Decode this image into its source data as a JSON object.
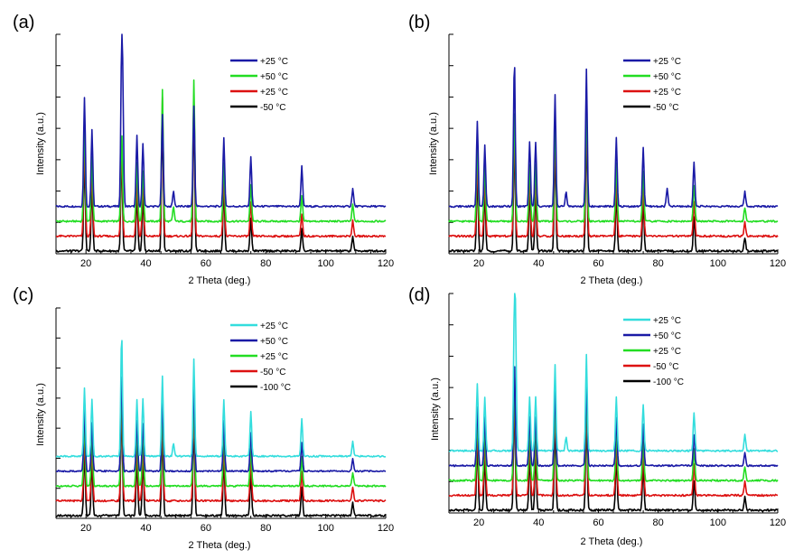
{
  "chart_data": [
    {
      "panel": "(a)",
      "type": "line",
      "xlabel": "2 Theta (deg.)",
      "ylabel": "Intensity (a.u.)",
      "xlim": [
        10,
        120
      ],
      "xticks": [
        20,
        40,
        60,
        80,
        100,
        120
      ],
      "legend": [
        {
          "label": "+25 °C",
          "color": "#1a1aa6"
        },
        {
          "label": "+50 °C",
          "color": "#22dd22"
        },
        {
          "label": "+25 °C",
          "color": "#dd1111"
        },
        {
          "label": "-50 °C",
          "color": "#000000"
        }
      ],
      "series": [
        {
          "name": "+25 °C",
          "color": "#1a1aa6",
          "baseline": 0.18,
          "peaks": [
            [
              19.5,
              0.74
            ],
            [
              22,
              0.52
            ],
            [
              31.9,
              1.0
            ],
            [
              32.3,
              0.56
            ],
            [
              37,
              0.48
            ],
            [
              39,
              0.42
            ],
            [
              45.5,
              0.62
            ],
            [
              49.2,
              0.1
            ],
            [
              56,
              0.68
            ],
            [
              66,
              0.46
            ],
            [
              75,
              0.34
            ],
            [
              92,
              0.27
            ],
            [
              109,
              0.12
            ]
          ]
        },
        {
          "name": "+50 °C",
          "color": "#22dd22",
          "baseline": 0.24,
          "peaks": [
            [
              19.5,
              0.7
            ],
            [
              22,
              0.46
            ],
            [
              31.9,
              0.65
            ],
            [
              37,
              0.42
            ],
            [
              39,
              0.36
            ],
            [
              45.5,
              0.94
            ],
            [
              49.2,
              0.1
            ],
            [
              56,
              1.0
            ],
            [
              66,
              0.42
            ],
            [
              75,
              0.26
            ],
            [
              92,
              0.18
            ],
            [
              109,
              0.12
            ]
          ]
        },
        {
          "name": "+25 °C",
          "color": "#dd1111",
          "baseline": 0.3,
          "peaks": [
            [
              19.5,
              0.62
            ],
            [
              22,
              0.44
            ],
            [
              31.9,
              0.63
            ],
            [
              37,
              0.38
            ],
            [
              39,
              0.36
            ],
            [
              45.5,
              0.9
            ],
            [
              56,
              0.92
            ],
            [
              66,
              0.4
            ],
            [
              75,
              0.22
            ],
            [
              92,
              0.14
            ],
            [
              109,
              0.1
            ]
          ]
        },
        {
          "name": "-50 °C",
          "color": "#000000",
          "baseline": 0.36,
          "peaks": [
            [
              19.5,
              0.55
            ],
            [
              22,
              0.4
            ],
            [
              31.9,
              0.6
            ],
            [
              37,
              0.34
            ],
            [
              39,
              0.32
            ],
            [
              45.5,
              0.84
            ],
            [
              56,
              0.85
            ],
            [
              66,
              0.38
            ],
            [
              75,
              0.2
            ],
            [
              92,
              0.13
            ],
            [
              109,
              0.09
            ]
          ]
        }
      ]
    },
    {
      "panel": "(b)",
      "type": "line",
      "xlabel": "2 Theta (deg.)",
      "ylabel": "Intensity (a.u.)",
      "xlim": [
        10,
        120
      ],
      "xticks": [
        20,
        40,
        60,
        80,
        100,
        120
      ],
      "legend": [
        {
          "label": "+25 °C",
          "color": "#1a1aa6"
        },
        {
          "label": "+50 °C",
          "color": "#22dd22"
        },
        {
          "label": "+25 °C",
          "color": "#dd1111"
        },
        {
          "label": "-50 °C",
          "color": "#000000"
        }
      ],
      "series": [
        {
          "name": "+25 °C",
          "color": "#1a1aa6",
          "baseline": 0.18,
          "peaks": [
            [
              19.5,
              0.58
            ],
            [
              22,
              0.41
            ],
            [
              31.9,
              1.0
            ],
            [
              37,
              0.44
            ],
            [
              39,
              0.43
            ],
            [
              45.5,
              0.76
            ],
            [
              49.2,
              0.1
            ],
            [
              56,
              0.93
            ],
            [
              66,
              0.46
            ],
            [
              75,
              0.4
            ],
            [
              83,
              0.12
            ],
            [
              92,
              0.3
            ],
            [
              109,
              0.1
            ]
          ]
        },
        {
          "name": "+50 °C",
          "color": "#22dd22",
          "baseline": 0.24,
          "peaks": [
            [
              19.5,
              0.56
            ],
            [
              22,
              0.4
            ],
            [
              31.9,
              0.82
            ],
            [
              37,
              0.4
            ],
            [
              39,
              0.4
            ],
            [
              45.5,
              0.72
            ],
            [
              56,
              0.86
            ],
            [
              66,
              0.42
            ],
            [
              75,
              0.36
            ],
            [
              92,
              0.26
            ],
            [
              109,
              0.1
            ]
          ]
        },
        {
          "name": "+25 °C",
          "color": "#dd1111",
          "baseline": 0.3,
          "peaks": [
            [
              19.5,
              0.5
            ],
            [
              22,
              0.38
            ],
            [
              31.9,
              0.76
            ],
            [
              37,
              0.38
            ],
            [
              39,
              0.38
            ],
            [
              45.5,
              0.66
            ],
            [
              56,
              0.8
            ],
            [
              66,
              0.38
            ],
            [
              75,
              0.32
            ],
            [
              92,
              0.22
            ],
            [
              109,
              0.09
            ]
          ]
        },
        {
          "name": "-50 °C",
          "color": "#000000",
          "baseline": 0.36,
          "peaks": [
            [
              19.5,
              0.45
            ],
            [
              22,
              0.36
            ],
            [
              31.9,
              0.7
            ],
            [
              37,
              0.36
            ],
            [
              39,
              0.36
            ],
            [
              45.5,
              0.62
            ],
            [
              56,
              0.74
            ],
            [
              66,
              0.35
            ],
            [
              75,
              0.3
            ],
            [
              92,
              0.2
            ],
            [
              109,
              0.08
            ]
          ]
        }
      ]
    },
    {
      "panel": "(c)",
      "type": "line",
      "xlabel": "2 Theta (deg.)",
      "ylabel": "Intensity (a.u.)",
      "xlim": [
        10,
        120
      ],
      "xticks": [
        20,
        40,
        60,
        80,
        100,
        120
      ],
      "legend": [
        {
          "label": "+25 °C",
          "color": "#33dddd"
        },
        {
          "label": "+50 °C",
          "color": "#1a1aa6"
        },
        {
          "label": "+25 °C",
          "color": "#22dd22"
        },
        {
          "label": "-50 °C",
          "color": "#dd1111"
        },
        {
          "label": "-100 °C",
          "color": "#000000"
        }
      ],
      "series": [
        {
          "name": "+25 °C",
          "color": "#33dddd",
          "baseline": 0.18,
          "peaks": [
            [
              19.5,
              0.55
            ],
            [
              22,
              0.46
            ],
            [
              31.9,
              1.0
            ],
            [
              37,
              0.46
            ],
            [
              39,
              0.46
            ],
            [
              45.5,
              0.65
            ],
            [
              49.2,
              0.1
            ],
            [
              56,
              0.78
            ],
            [
              66,
              0.46
            ],
            [
              75,
              0.36
            ],
            [
              92,
              0.3
            ],
            [
              109,
              0.12
            ]
          ]
        },
        {
          "name": "+50 °C",
          "color": "#1a1aa6",
          "baseline": 0.24,
          "peaks": [
            [
              19.5,
              0.52
            ],
            [
              22,
              0.4
            ],
            [
              31.9,
              0.84
            ],
            [
              37,
              0.42
            ],
            [
              39,
              0.4
            ],
            [
              45.5,
              0.62
            ],
            [
              56,
              0.7
            ],
            [
              66,
              0.42
            ],
            [
              75,
              0.32
            ],
            [
              92,
              0.24
            ],
            [
              109,
              0.1
            ]
          ]
        },
        {
          "name": "+25 °C",
          "color": "#22dd22",
          "baseline": 0.3,
          "peaks": [
            [
              19.5,
              0.48
            ],
            [
              22,
              0.38
            ],
            [
              31.9,
              0.8
            ],
            [
              37,
              0.4
            ],
            [
              39,
              0.38
            ],
            [
              45.5,
              0.58
            ],
            [
              56,
              0.66
            ],
            [
              66,
              0.4
            ],
            [
              75,
              0.3
            ],
            [
              92,
              0.22
            ],
            [
              109,
              0.1
            ]
          ]
        },
        {
          "name": "-50 °C",
          "color": "#dd1111",
          "baseline": 0.36,
          "peaks": [
            [
              19.5,
              0.44
            ],
            [
              22,
              0.36
            ],
            [
              31.9,
              0.76
            ],
            [
              37,
              0.38
            ],
            [
              39,
              0.36
            ],
            [
              45.5,
              0.56
            ],
            [
              56,
              0.62
            ],
            [
              66,
              0.38
            ],
            [
              75,
              0.28
            ],
            [
              92,
              0.2
            ],
            [
              109,
              0.09
            ]
          ]
        },
        {
          "name": "-100 °C",
          "color": "#000000",
          "baseline": 0.42,
          "peaks": [
            [
              19.5,
              0.4
            ],
            [
              22,
              0.34
            ],
            [
              31.9,
              0.72
            ],
            [
              37,
              0.36
            ],
            [
              39,
              0.34
            ],
            [
              45.5,
              0.52
            ],
            [
              56,
              0.58
            ],
            [
              66,
              0.36
            ],
            [
              75,
              0.26
            ],
            [
              92,
              0.18
            ],
            [
              109,
              0.08
            ]
          ]
        }
      ]
    },
    {
      "panel": "(d)",
      "type": "line",
      "xlabel": "2 Theta (deg.)",
      "ylabel": "Intensity (a.u.)",
      "xlim": [
        10,
        120
      ],
      "xticks": [
        20,
        40,
        60,
        80,
        100,
        120
      ],
      "legend": [
        {
          "label": "+25 °C",
          "color": "#33dddd"
        },
        {
          "label": "+50 °C",
          "color": "#1a1aa6"
        },
        {
          "label": "+25 °C",
          "color": "#22dd22"
        },
        {
          "label": "-50 °C",
          "color": "#dd1111"
        },
        {
          "label": "-100 °C",
          "color": "#000000"
        }
      ],
      "series": [
        {
          "name": "+25 °C",
          "color": "#33dddd",
          "baseline": 0.18,
          "peaks": [
            [
              19.5,
              0.5
            ],
            [
              22,
              0.4
            ],
            [
              31.9,
              1.0
            ],
            [
              32.3,
              0.7
            ],
            [
              37,
              0.4
            ],
            [
              39,
              0.4
            ],
            [
              45.5,
              0.65
            ],
            [
              49.2,
              0.1
            ],
            [
              56,
              0.72
            ],
            [
              66,
              0.4
            ],
            [
              75,
              0.35
            ],
            [
              92,
              0.28
            ],
            [
              109,
              0.12
            ]
          ]
        },
        {
          "name": "+50 °C",
          "color": "#1a1aa6",
          "baseline": 0.24,
          "peaks": [
            [
              19.5,
              0.46
            ],
            [
              22,
              0.38
            ],
            [
              31.9,
              0.82
            ],
            [
              37,
              0.38
            ],
            [
              39,
              0.38
            ],
            [
              45.5,
              0.6
            ],
            [
              56,
              0.66
            ],
            [
              66,
              0.38
            ],
            [
              75,
              0.32
            ],
            [
              92,
              0.24
            ],
            [
              109,
              0.1
            ]
          ]
        },
        {
          "name": "+25 °C",
          "color": "#22dd22",
          "baseline": 0.3,
          "peaks": [
            [
              19.5,
              0.44
            ],
            [
              22,
              0.36
            ],
            [
              31.9,
              0.78
            ],
            [
              37,
              0.36
            ],
            [
              39,
              0.36
            ],
            [
              45.5,
              0.57
            ],
            [
              56,
              0.62
            ],
            [
              66,
              0.36
            ],
            [
              75,
              0.3
            ],
            [
              92,
              0.22
            ],
            [
              109,
              0.1
            ]
          ]
        },
        {
          "name": "-50 °C",
          "color": "#dd1111",
          "baseline": 0.36,
          "peaks": [
            [
              19.5,
              0.42
            ],
            [
              22,
              0.34
            ],
            [
              31.9,
              0.74
            ],
            [
              37,
              0.34
            ],
            [
              39,
              0.34
            ],
            [
              45.5,
              0.54
            ],
            [
              56,
              0.58
            ],
            [
              66,
              0.34
            ],
            [
              75,
              0.28
            ],
            [
              92,
              0.2
            ],
            [
              109,
              0.09
            ]
          ]
        },
        {
          "name": "-100 °C",
          "color": "#000000",
          "baseline": 0.42,
          "peaks": [
            [
              19.5,
              0.4
            ],
            [
              22,
              0.32
            ],
            [
              31.9,
              0.7
            ],
            [
              37,
              0.32
            ],
            [
              39,
              0.32
            ],
            [
              45.5,
              0.5
            ],
            [
              56,
              0.55
            ],
            [
              66,
              0.32
            ],
            [
              75,
              0.26
            ],
            [
              92,
              0.18
            ],
            [
              109,
              0.08
            ]
          ]
        }
      ]
    }
  ]
}
